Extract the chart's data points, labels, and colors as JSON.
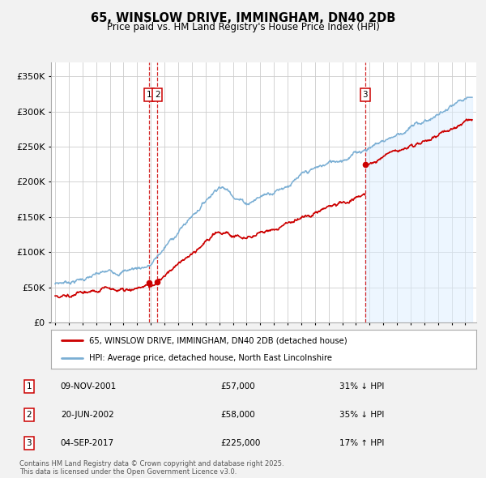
{
  "title": "65, WINSLOW DRIVE, IMMINGHAM, DN40 2DB",
  "subtitle": "Price paid vs. HM Land Registry's House Price Index (HPI)",
  "ylabel_vals": [
    "£0",
    "£50K",
    "£100K",
    "£150K",
    "£200K",
    "£250K",
    "£300K",
    "£350K"
  ],
  "ylim": [
    0,
    370000
  ],
  "yticks": [
    0,
    50000,
    100000,
    150000,
    200000,
    250000,
    300000,
    350000
  ],
  "legend_line1": "65, WINSLOW DRIVE, IMMINGHAM, DN40 2DB (detached house)",
  "legend_line2": "HPI: Average price, detached house, North East Lincolnshire",
  "line_color_red": "#cc0000",
  "line_color_blue": "#7bafd4",
  "fill_color_blue": "#ddeeff",
  "sale_points": [
    {
      "label": "1",
      "date_num": 2001.86,
      "price": 57000
    },
    {
      "label": "2",
      "date_num": 2002.47,
      "price": 58000
    },
    {
      "label": "3",
      "date_num": 2017.68,
      "price": 225000
    }
  ],
  "sale_annotations": [
    {
      "label": "1",
      "date": "09-NOV-2001",
      "price": "£57,000",
      "hpi_change": "31% ↓ HPI"
    },
    {
      "label": "2",
      "date": "20-JUN-2002",
      "price": "£58,000",
      "hpi_change": "35% ↓ HPI"
    },
    {
      "label": "3",
      "date": "04-SEP-2017",
      "price": "£225,000",
      "hpi_change": "17% ↑ HPI"
    }
  ],
  "footnote": "Contains HM Land Registry data © Crown copyright and database right 2025.\nThis data is licensed under the Open Government Licence v3.0.",
  "background_color": "#f2f2f2",
  "plot_bg_color": "#ffffff",
  "grid_color": "#cccccc"
}
